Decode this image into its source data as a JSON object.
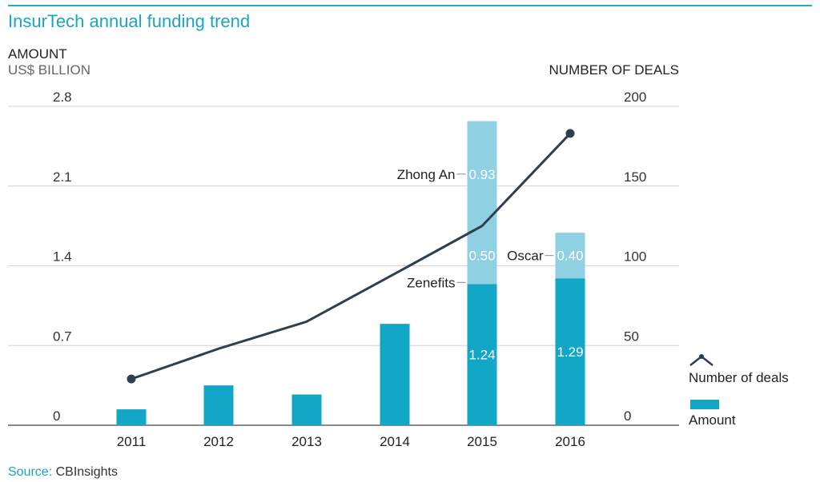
{
  "header": {
    "title": "InsurTech annual funding trend",
    "left_axis_head": "AMOUNT",
    "left_axis_sub": "US$ BILLION",
    "right_axis_head": "NUMBER OF DEALS"
  },
  "source": {
    "label": "Source:",
    "value": "CBInsights"
  },
  "colors": {
    "amount": "#12a6c7",
    "highlight": "#8fd0e3",
    "line": "#2f3f4f",
    "accent": "#1ab0c8"
  },
  "chart_data": {
    "type": "bar",
    "title": "InsurTech annual funding trend",
    "categories": [
      "2011",
      "2012",
      "2013",
      "2014",
      "2015",
      "2016"
    ],
    "y_left": {
      "label": "AMOUNT US$ BILLION",
      "ylim": [
        0,
        2.8
      ],
      "ticks": [
        "0",
        "0.7",
        "1.4",
        "2.1",
        "2.8"
      ]
    },
    "y_right": {
      "label": "NUMBER OF DEALS",
      "ylim": [
        0,
        200
      ],
      "ticks": [
        "0",
        "50",
        "100",
        "150",
        "200"
      ]
    },
    "series": [
      {
        "name": "Amount",
        "type": "bar",
        "axis": "left",
        "values": [
          0.14,
          0.35,
          0.27,
          0.89,
          1.24,
          1.29
        ]
      },
      {
        "name": "Number of deals",
        "type": "line",
        "axis": "right",
        "values": [
          29,
          48,
          65,
          95,
          125,
          183
        ]
      }
    ],
    "stacked_segments": [
      {
        "category": "2015",
        "label": "Zenefits",
        "value": 0.5
      },
      {
        "category": "2015",
        "label": "Zhong An",
        "value": 0.93
      },
      {
        "category": "2016",
        "label": "Oscar",
        "value": 0.4
      }
    ],
    "base_labels": [
      {
        "category": "2015",
        "value": "1.24"
      },
      {
        "category": "2016",
        "value": "1.29"
      }
    ],
    "segment_value_labels": {
      "Zenefits": "0.50",
      "Zhong An": "0.93",
      "Oscar": "0.40"
    },
    "legend": {
      "placement": "right",
      "entries": [
        "Number of deals",
        "Amount"
      ]
    },
    "grid": true
  }
}
